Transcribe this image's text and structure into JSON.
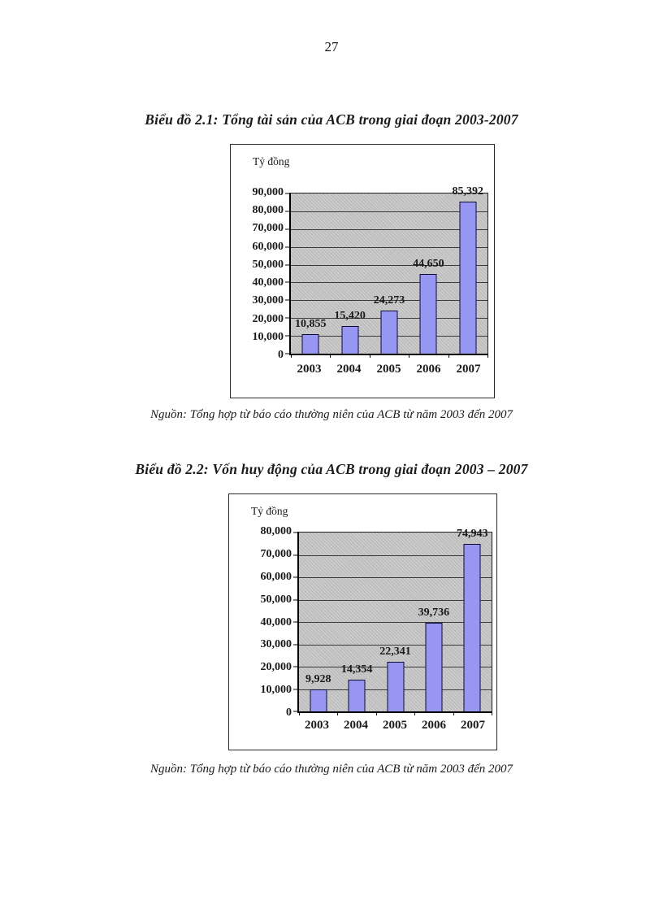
{
  "page": {
    "number": "27"
  },
  "figure1": {
    "title": "Biểu đồ 2.1: Tổng tài sản của ACB trong giai đoạn 2003-2007",
    "source": "Nguồn: Tổng hợp từ báo cáo thường niên của ACB từ  năm 2003 đến 2007"
  },
  "figure2": {
    "title": "Biểu đồ 2.2: Vốn huy động của ACB trong giai đoạn 2003 – 2007",
    "source": "Nguồn: Tổng hợp từ báo cáo thường niên của ACB từ  năm 2003 đến 2007"
  },
  "chart_data": [
    {
      "type": "bar",
      "title": "Biểu đồ 2.1: Tổng tài sản của ACB trong giai đoạn 2003-2007",
      "unit_label": "Tỷ đồng",
      "categories": [
        "2003",
        "2004",
        "2005",
        "2006",
        "2007"
      ],
      "values": [
        10855,
        15420,
        24273,
        44650,
        85392
      ],
      "value_labels": [
        "10,855",
        "15,420",
        "24,273",
        "44,650",
        "85,392"
      ],
      "y_tick_labels": [
        "90,000",
        "80,000",
        "70,000",
        "60,000",
        "50,000",
        "40,000",
        "30,000",
        "20,000",
        "10,000",
        "0"
      ],
      "ylim": [
        0,
        90000
      ],
      "y_step": 10000,
      "grid": true,
      "legend": "none",
      "xlabel": "",
      "ylabel": "Tỷ đồng",
      "bar_color": "#9797f3",
      "plot_bg_color": "#c5c5c5"
    },
    {
      "type": "bar",
      "title": "Biểu đồ 2.2: Vốn huy động của ACB trong giai đoạn 2003 – 2007",
      "unit_label": "Tỷ đồng",
      "categories": [
        "2003",
        "2004",
        "2005",
        "2006",
        "2007"
      ],
      "values": [
        9928,
        14354,
        22341,
        39736,
        74943
      ],
      "value_labels": [
        "9,928",
        "14,354",
        "22,341",
        "39,736",
        "74,943"
      ],
      "y_tick_labels": [
        "80,000",
        "70,000",
        "60,000",
        "50,000",
        "40,000",
        "30,000",
        "20,000",
        "10,000",
        "0"
      ],
      "ylim": [
        0,
        80000
      ],
      "y_step": 10000,
      "grid": true,
      "legend": "none",
      "xlabel": "",
      "ylabel": "Tỷ đồng",
      "bar_color": "#9797f3",
      "plot_bg_color": "#c5c5c5"
    }
  ]
}
